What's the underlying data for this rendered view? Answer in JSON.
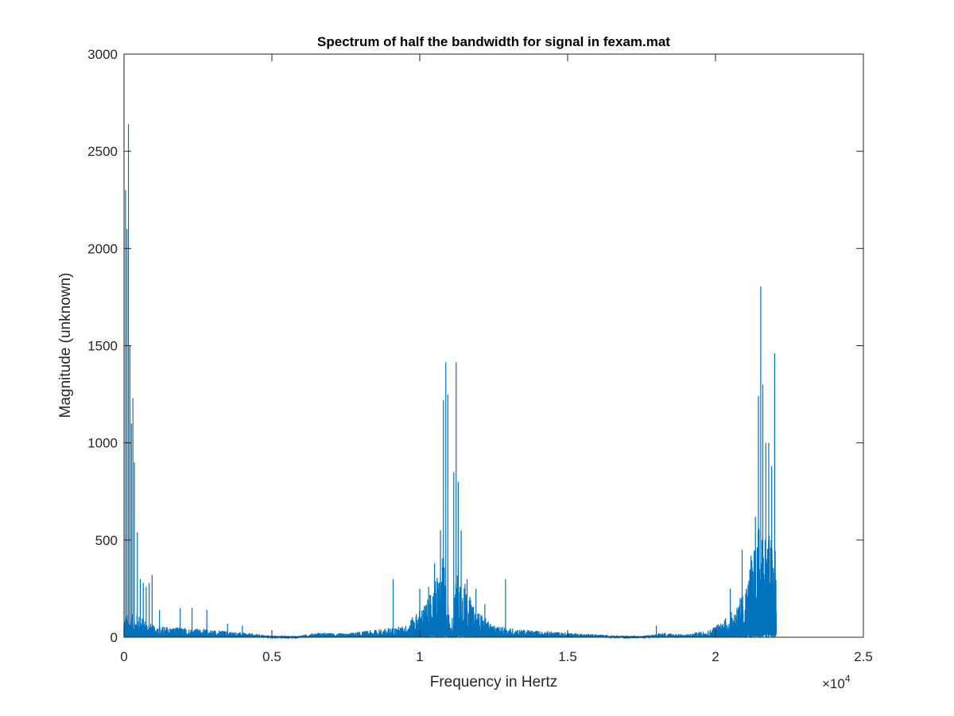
{
  "chart_data": {
    "type": "line",
    "title": "Spectrum of half the bandwidth for signal in fexam.mat",
    "xlabel": "Frequency in Hertz",
    "ylabel": "Magnitude (unknown)",
    "x_exponent_label": "×10",
    "x_exponent": "4",
    "xlim": [
      0,
      25000
    ],
    "ylim": [
      0,
      3000
    ],
    "x_ticks": [
      0,
      5000,
      10000,
      15000,
      20000,
      25000
    ],
    "x_tick_labels": [
      "0",
      "0.5",
      "1",
      "1.5",
      "2",
      "2.5"
    ],
    "y_ticks": [
      0,
      500,
      1000,
      1500,
      2000,
      2500,
      3000
    ],
    "y_tick_labels": [
      "0",
      "500",
      "1000",
      "1500",
      "2000",
      "2500",
      "3000"
    ],
    "grid": false,
    "series": [
      {
        "color": "#0072BD",
        "peaks": [
          {
            "x": 50,
            "y": 2300
          },
          {
            "x": 100,
            "y": 2100
          },
          {
            "x": 150,
            "y": 2640
          },
          {
            "x": 200,
            "y": 1500
          },
          {
            "x": 250,
            "y": 1100
          },
          {
            "x": 300,
            "y": 1230
          },
          {
            "x": 350,
            "y": 900
          },
          {
            "x": 450,
            "y": 540
          },
          {
            "x": 550,
            "y": 300
          },
          {
            "x": 650,
            "y": 280
          },
          {
            "x": 750,
            "y": 260
          },
          {
            "x": 850,
            "y": 280
          },
          {
            "x": 950,
            "y": 320
          },
          {
            "x": 1200,
            "y": 140
          },
          {
            "x": 1900,
            "y": 150
          },
          {
            "x": 2300,
            "y": 150
          },
          {
            "x": 2800,
            "y": 140
          },
          {
            "x": 3500,
            "y": 70
          },
          {
            "x": 4000,
            "y": 60
          },
          {
            "x": 9100,
            "y": 300
          },
          {
            "x": 10000,
            "y": 250
          },
          {
            "x": 10300,
            "y": 260
          },
          {
            "x": 10500,
            "y": 380
          },
          {
            "x": 10700,
            "y": 550
          },
          {
            "x": 10800,
            "y": 1220
          },
          {
            "x": 10880,
            "y": 1415
          },
          {
            "x": 10950,
            "y": 1250
          },
          {
            "x": 11150,
            "y": 850
          },
          {
            "x": 11230,
            "y": 1415
          },
          {
            "x": 11300,
            "y": 800
          },
          {
            "x": 11400,
            "y": 550
          },
          {
            "x": 11600,
            "y": 300
          },
          {
            "x": 11900,
            "y": 250
          },
          {
            "x": 12200,
            "y": 170
          },
          {
            "x": 12900,
            "y": 300
          },
          {
            "x": 18000,
            "y": 60
          },
          {
            "x": 20500,
            "y": 250
          },
          {
            "x": 20900,
            "y": 450
          },
          {
            "x": 21200,
            "y": 420
          },
          {
            "x": 21350,
            "y": 620
          },
          {
            "x": 21450,
            "y": 1240
          },
          {
            "x": 21530,
            "y": 1805
          },
          {
            "x": 21600,
            "y": 1300
          },
          {
            "x": 21700,
            "y": 1000
          },
          {
            "x": 21800,
            "y": 1000
          },
          {
            "x": 21900,
            "y": 880
          },
          {
            "x": 22000,
            "y": 1460
          }
        ],
        "envelope": [
          {
            "x": 0,
            "y": 120
          },
          {
            "x": 500,
            "y": 120
          },
          {
            "x": 1000,
            "y": 60
          },
          {
            "x": 2000,
            "y": 50
          },
          {
            "x": 3000,
            "y": 40
          },
          {
            "x": 4000,
            "y": 25
          },
          {
            "x": 5000,
            "y": 8
          },
          {
            "x": 5800,
            "y": 5
          },
          {
            "x": 6500,
            "y": 25
          },
          {
            "x": 7500,
            "y": 20
          },
          {
            "x": 8500,
            "y": 40
          },
          {
            "x": 9500,
            "y": 60
          },
          {
            "x": 10300,
            "y": 200
          },
          {
            "x": 10800,
            "y": 420
          },
          {
            "x": 11050,
            "y": 40
          },
          {
            "x": 11300,
            "y": 400
          },
          {
            "x": 11800,
            "y": 160
          },
          {
            "x": 12500,
            "y": 60
          },
          {
            "x": 13500,
            "y": 40
          },
          {
            "x": 15000,
            "y": 25
          },
          {
            "x": 16500,
            "y": 10
          },
          {
            "x": 17500,
            "y": 5
          },
          {
            "x": 18200,
            "y": 25
          },
          {
            "x": 19000,
            "y": 15
          },
          {
            "x": 19800,
            "y": 40
          },
          {
            "x": 20500,
            "y": 120
          },
          {
            "x": 21000,
            "y": 250
          },
          {
            "x": 21500,
            "y": 600
          },
          {
            "x": 22050,
            "y": 500
          }
        ],
        "x_end": 22050
      }
    ]
  }
}
